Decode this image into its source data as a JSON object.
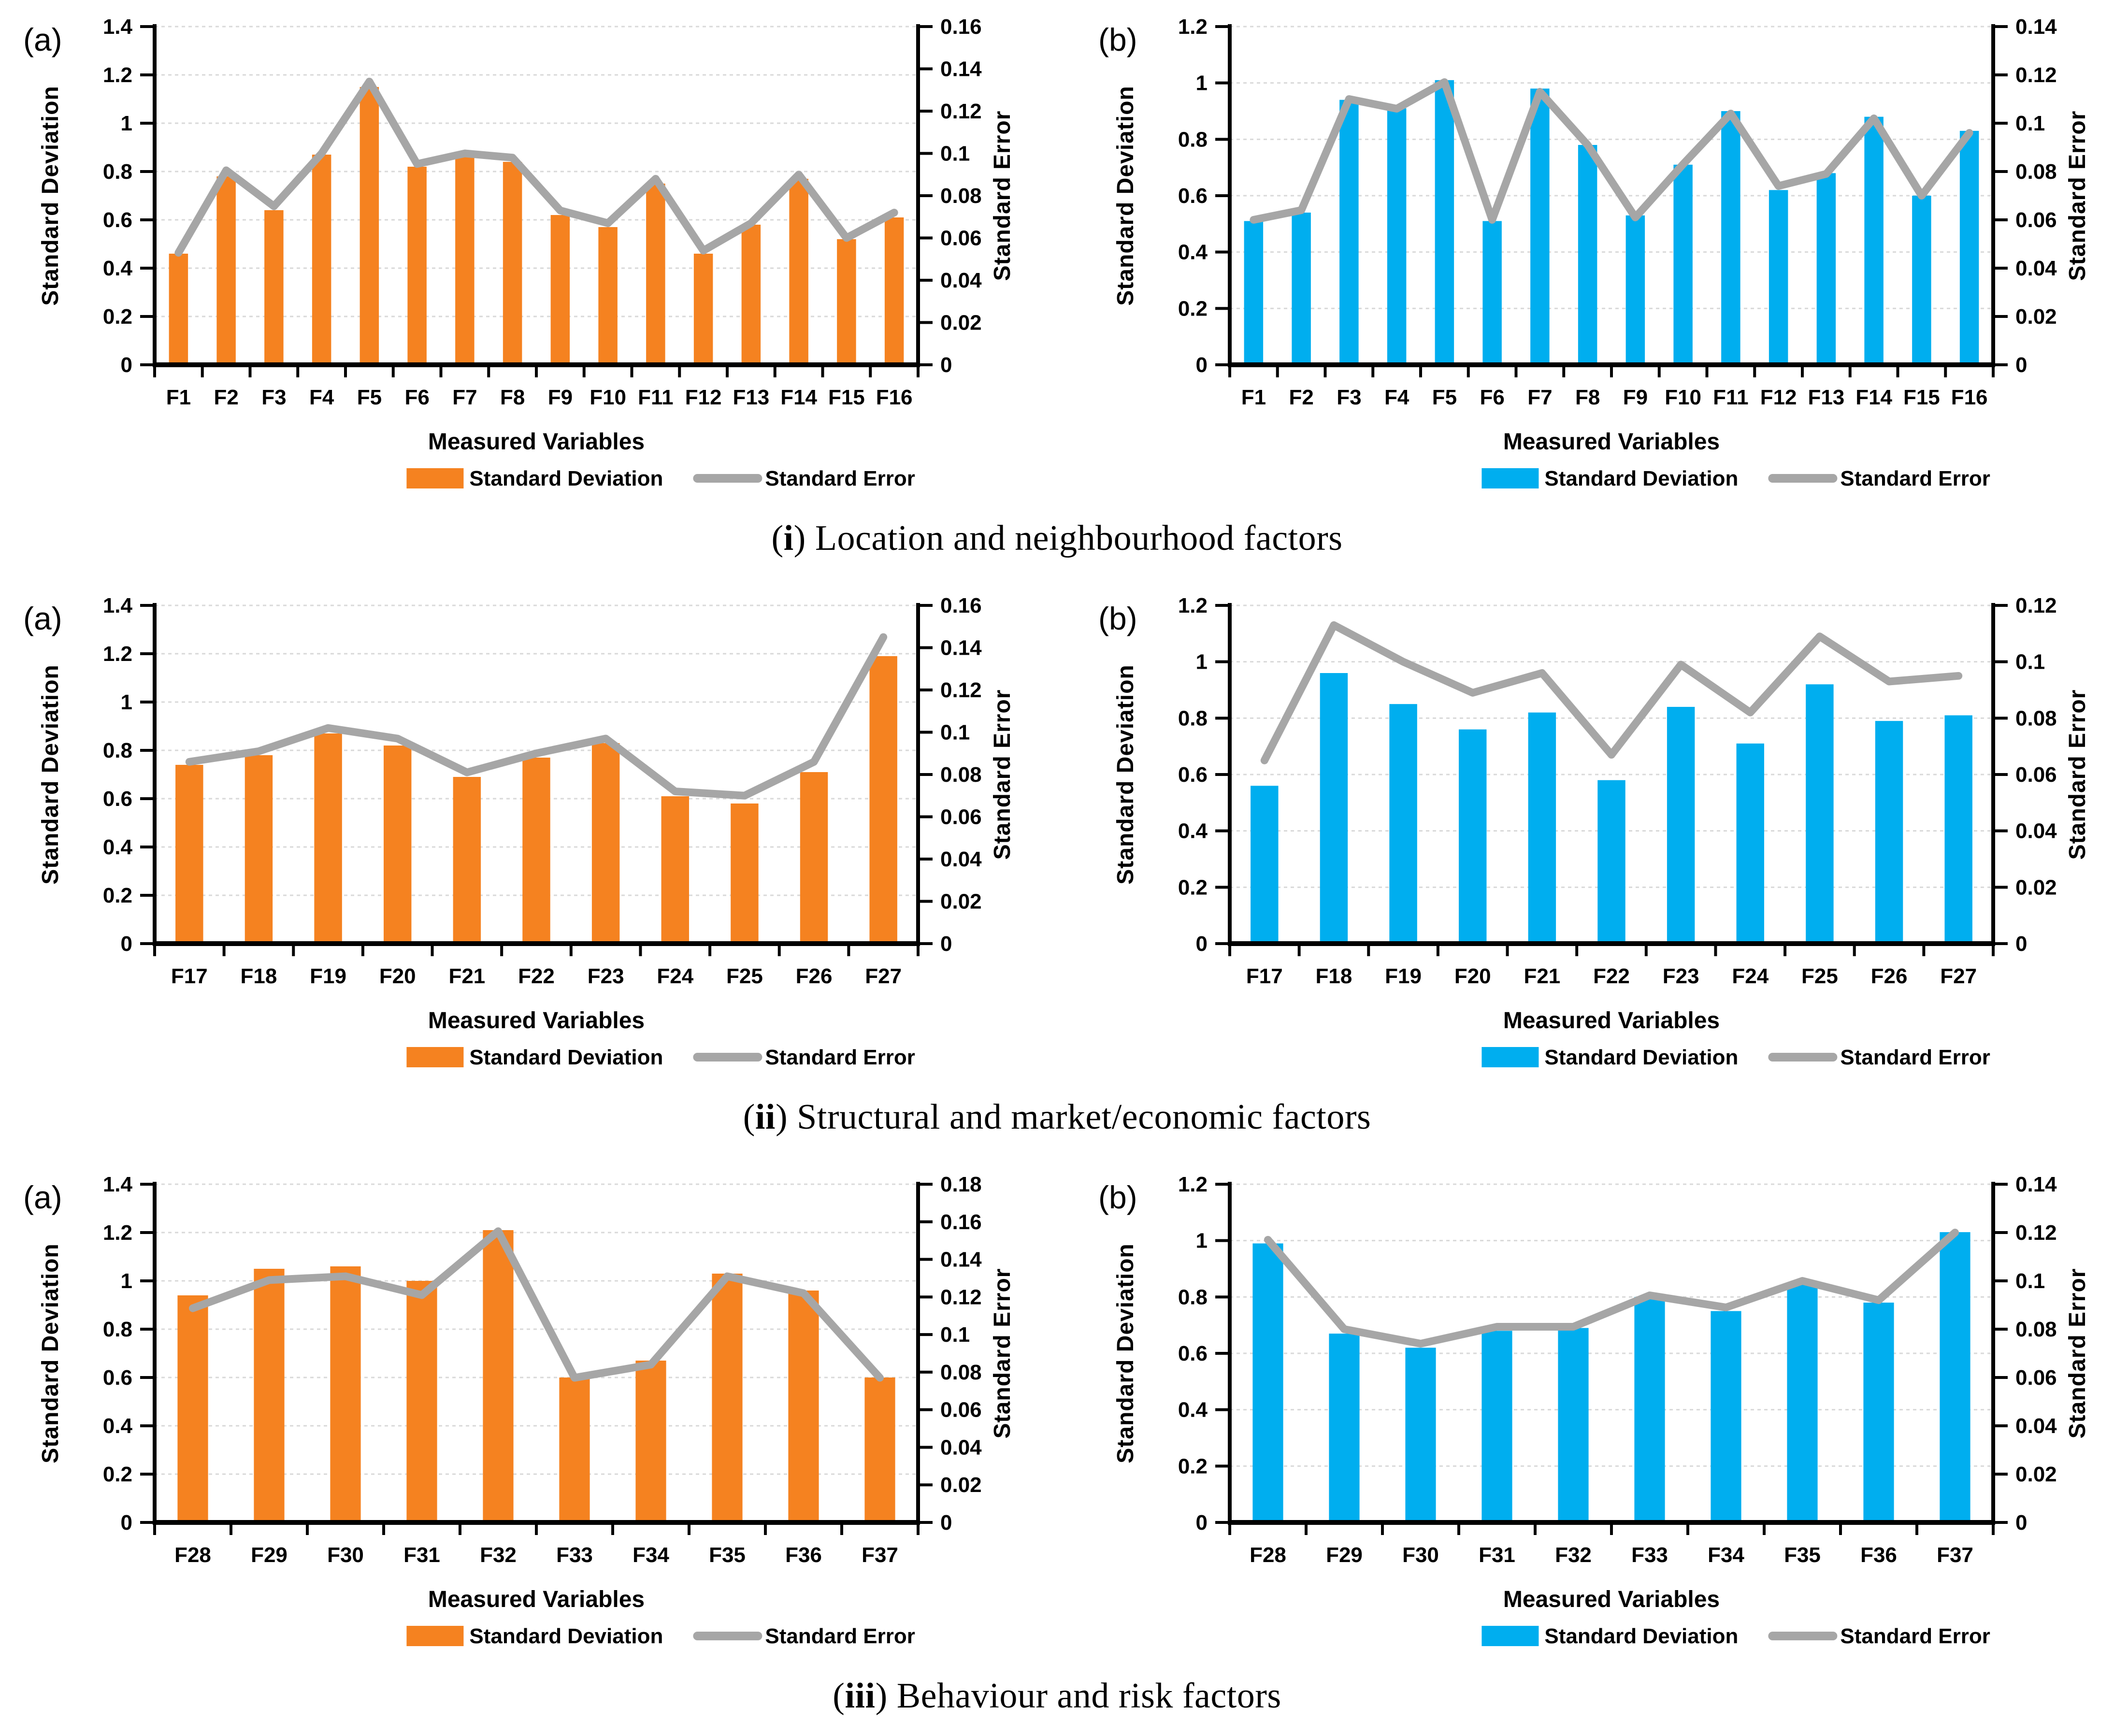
{
  "shared": {
    "xlabel": "Measured Variables",
    "ylabel_left": "Standard Deviation",
    "ylabel_right": "Standard Error",
    "legend_sd_label": "Standard Deviation",
    "legend_se_label": "Standard Error",
    "colors": {
      "orange": "#F58220",
      "blue": "#00AEEF",
      "line_gray": "#A6A6A6",
      "grid_gray": "#D9D9D9",
      "axis_black": "#000000",
      "text_black": "#000000"
    }
  },
  "captions": [
    {
      "open": "(",
      "numeral": "i",
      "close": ") ",
      "text": "Location and neighbourhood factors"
    },
    {
      "open": "(",
      "numeral": "ii",
      "close": ") ",
      "text": "Structural and market/economic factors"
    },
    {
      "open": "(",
      "numeral": "iii",
      "close": ") ",
      "text": "Behaviour and risk factors"
    }
  ],
  "chart_data": [
    {
      "id": "i-a",
      "type": "bar",
      "panel_label": "(a)",
      "group": "Location and neighbourhood factors",
      "bar_color": "#F58220",
      "line_color": "#A6A6A6",
      "categories": [
        "F1",
        "F2",
        "F3",
        "F4",
        "F5",
        "F6",
        "F7",
        "F8",
        "F9",
        "F10",
        "F11",
        "F12",
        "F13",
        "F14",
        "F15",
        "F16"
      ],
      "series": [
        {
          "name": "Standard Deviation",
          "type": "bar",
          "axis": "left",
          "values": [
            0.46,
            0.78,
            0.64,
            0.87,
            1.15,
            0.82,
            0.86,
            0.84,
            0.62,
            0.57,
            0.75,
            0.46,
            0.58,
            0.77,
            0.52,
            0.61
          ]
        },
        {
          "name": "Standard Error",
          "type": "line",
          "axis": "right",
          "values": [
            0.053,
            0.092,
            0.075,
            0.1,
            0.134,
            0.095,
            0.1,
            0.098,
            0.073,
            0.067,
            0.088,
            0.054,
            0.067,
            0.09,
            0.06,
            0.072
          ]
        }
      ],
      "xlabel": "Measured Variables",
      "ylabel_left": "Standard Deviation",
      "ylabel_right": "Standard Error",
      "ylim_left": [
        0,
        1.4
      ],
      "ystep_left": 0.2,
      "ylim_right": [
        0,
        0.16
      ],
      "ystep_right": 0.02,
      "grid": true,
      "legend_position": "bottom"
    },
    {
      "id": "i-b",
      "type": "bar",
      "panel_label": "(b)",
      "group": "Location and neighbourhood factors",
      "bar_color": "#00AEEF",
      "line_color": "#A6A6A6",
      "categories": [
        "F1",
        "F2",
        "F3",
        "F4",
        "F5",
        "F6",
        "F7",
        "F8",
        "F9",
        "F10",
        "F11",
        "F12",
        "F13",
        "F14",
        "F15",
        "F16"
      ],
      "series": [
        {
          "name": "Standard Deviation",
          "type": "bar",
          "axis": "left",
          "values": [
            0.51,
            0.54,
            0.94,
            0.91,
            1.01,
            0.51,
            0.98,
            0.78,
            0.53,
            0.71,
            0.9,
            0.62,
            0.68,
            0.88,
            0.6,
            0.83
          ]
        },
        {
          "name": "Standard Error",
          "type": "line",
          "axis": "right",
          "values": [
            0.06,
            0.064,
            0.11,
            0.106,
            0.117,
            0.06,
            0.113,
            0.091,
            0.061,
            0.083,
            0.104,
            0.074,
            0.079,
            0.102,
            0.07,
            0.096
          ]
        }
      ],
      "xlabel": "Measured Variables",
      "ylabel_left": "Standard Deviation",
      "ylabel_right": "Standard Error",
      "ylim_left": [
        0,
        1.2
      ],
      "ystep_left": 0.2,
      "ylim_right": [
        0,
        0.14
      ],
      "ystep_right": 0.02,
      "grid": true,
      "legend_position": "bottom"
    },
    {
      "id": "ii-a",
      "type": "bar",
      "panel_label": "(a)",
      "group": "Structural and market/economic factors",
      "bar_color": "#F58220",
      "line_color": "#A6A6A6",
      "categories": [
        "F17",
        "F18",
        "F19",
        "F20",
        "F21",
        "F22",
        "F23",
        "F24",
        "F25",
        "F26",
        "F27"
      ],
      "series": [
        {
          "name": "Standard Deviation",
          "type": "bar",
          "axis": "left",
          "values": [
            0.74,
            0.78,
            0.87,
            0.82,
            0.69,
            0.77,
            0.83,
            0.61,
            0.58,
            0.71,
            1.19
          ]
        },
        {
          "name": "Standard Error",
          "type": "line",
          "axis": "right",
          "values": [
            0.086,
            0.091,
            0.102,
            0.097,
            0.081,
            0.09,
            0.097,
            0.072,
            0.07,
            0.086,
            0.145
          ]
        }
      ],
      "xlabel": "Measured Variables",
      "ylabel_left": "Standard Deviation",
      "ylabel_right": "Standard Error",
      "ylim_left": [
        0,
        1.4
      ],
      "ystep_left": 0.2,
      "ylim_right": [
        0,
        0.16
      ],
      "ystep_right": 0.02,
      "grid": true,
      "legend_position": "bottom"
    },
    {
      "id": "ii-b",
      "type": "bar",
      "panel_label": "(b)",
      "group": "Structural and market/economic factors",
      "bar_color": "#00AEEF",
      "line_color": "#A6A6A6",
      "categories": [
        "F17",
        "F18",
        "F19",
        "F20",
        "F21",
        "F22",
        "F23",
        "F24",
        "F25",
        "F26",
        "F27"
      ],
      "series": [
        {
          "name": "Standard Deviation",
          "type": "bar",
          "axis": "left",
          "values": [
            0.56,
            0.96,
            0.85,
            0.76,
            0.82,
            0.58,
            0.84,
            0.71,
            0.92,
            0.79,
            0.81
          ]
        },
        {
          "name": "Standard Error",
          "type": "line",
          "axis": "right",
          "values": [
            0.065,
            0.113,
            0.1,
            0.089,
            0.096,
            0.067,
            0.099,
            0.082,
            0.109,
            0.093,
            0.095
          ]
        }
      ],
      "xlabel": "Measured Variables",
      "ylabel_left": "Standard Deviation",
      "ylabel_right": "Standard Error",
      "ylim_left": [
        0,
        1.2
      ],
      "ystep_left": 0.2,
      "ylim_right": [
        0,
        0.12
      ],
      "ystep_right": 0.02,
      "grid": true,
      "legend_position": "bottom"
    },
    {
      "id": "iii-a",
      "type": "bar",
      "panel_label": "(a)",
      "group": "Behaviour and risk factors",
      "bar_color": "#F58220",
      "line_color": "#A6A6A6",
      "categories": [
        "F28",
        "F29",
        "F30",
        "F31",
        "F32",
        "F33",
        "F34",
        "F35",
        "F36",
        "F37"
      ],
      "series": [
        {
          "name": "Standard Deviation",
          "type": "bar",
          "axis": "left",
          "values": [
            0.94,
            1.05,
            1.06,
            1.0,
            1.21,
            0.6,
            0.67,
            1.03,
            0.96,
            0.6
          ]
        },
        {
          "name": "Standard Error",
          "type": "line",
          "axis": "right",
          "values": [
            0.114,
            0.129,
            0.131,
            0.121,
            0.155,
            0.077,
            0.084,
            0.131,
            0.122,
            0.077
          ]
        }
      ],
      "xlabel": "Measured Variables",
      "ylabel_left": "Standard Deviation",
      "ylabel_right": "Standard Error",
      "ylim_left": [
        0,
        1.4
      ],
      "ystep_left": 0.2,
      "ylim_right": [
        0,
        0.18
      ],
      "ystep_right": 0.02,
      "grid": true,
      "legend_position": "bottom"
    },
    {
      "id": "iii-b",
      "type": "bar",
      "panel_label": "(b)",
      "group": "Behaviour and risk factors",
      "bar_color": "#00AEEF",
      "line_color": "#A6A6A6",
      "categories": [
        "F28",
        "F29",
        "F30",
        "F31",
        "F32",
        "F33",
        "F34",
        "F35",
        "F36",
        "F37"
      ],
      "series": [
        {
          "name": "Standard Deviation",
          "type": "bar",
          "axis": "left",
          "values": [
            0.99,
            0.67,
            0.62,
            0.68,
            0.69,
            0.8,
            0.75,
            0.85,
            0.78,
            1.03
          ]
        },
        {
          "name": "Standard Error",
          "type": "line",
          "axis": "right",
          "values": [
            0.117,
            0.08,
            0.074,
            0.081,
            0.081,
            0.094,
            0.089,
            0.1,
            0.092,
            0.12
          ]
        }
      ],
      "xlabel": "Measured Variables",
      "ylabel_left": "Standard Deviation",
      "ylabel_right": "Standard Error",
      "ylim_left": [
        0,
        1.2
      ],
      "ystep_left": 0.2,
      "ylim_right": [
        0,
        0.14
      ],
      "ystep_right": 0.02,
      "grid": true,
      "legend_position": "bottom"
    }
  ]
}
